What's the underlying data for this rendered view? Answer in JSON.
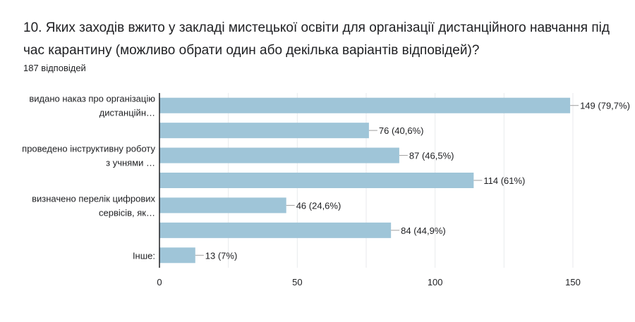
{
  "question": {
    "title": "10. Яких заходів вжито у закладі мистецької освіти для організації дистанційного навчання під час карантину (можливо обрати один або декілька варіантів відповідей)?",
    "responses": "187 відповідей"
  },
  "colors": {
    "bar": "#9fc5d8",
    "grid": "#e8eaed",
    "axis": "#202124",
    "text": "#202124"
  },
  "chart_data": {
    "type": "bar",
    "orientation": "horizontal",
    "categories": [
      [
        "видано наказ про організацію",
        "дистанційн…"
      ],
      [],
      [
        "проведено інструктивну роботу",
        "з учнями …"
      ],
      [],
      [
        "визначено перелік цифрових",
        "сервісів, як…"
      ],
      [],
      [
        "Інше:"
      ]
    ],
    "values": [
      149,
      76,
      87,
      114,
      46,
      84,
      13
    ],
    "data_labels": [
      "149 (79,7%)",
      "76 (40,6%)",
      "87 (46,5%)",
      "114 (61%)",
      "46 (24,6%)",
      "84 (44,9%)",
      "13 (7%)"
    ],
    "xlim": [
      0,
      150
    ],
    "xticks": [
      0,
      50,
      100,
      150
    ],
    "grid": true,
    "legend": "none"
  }
}
